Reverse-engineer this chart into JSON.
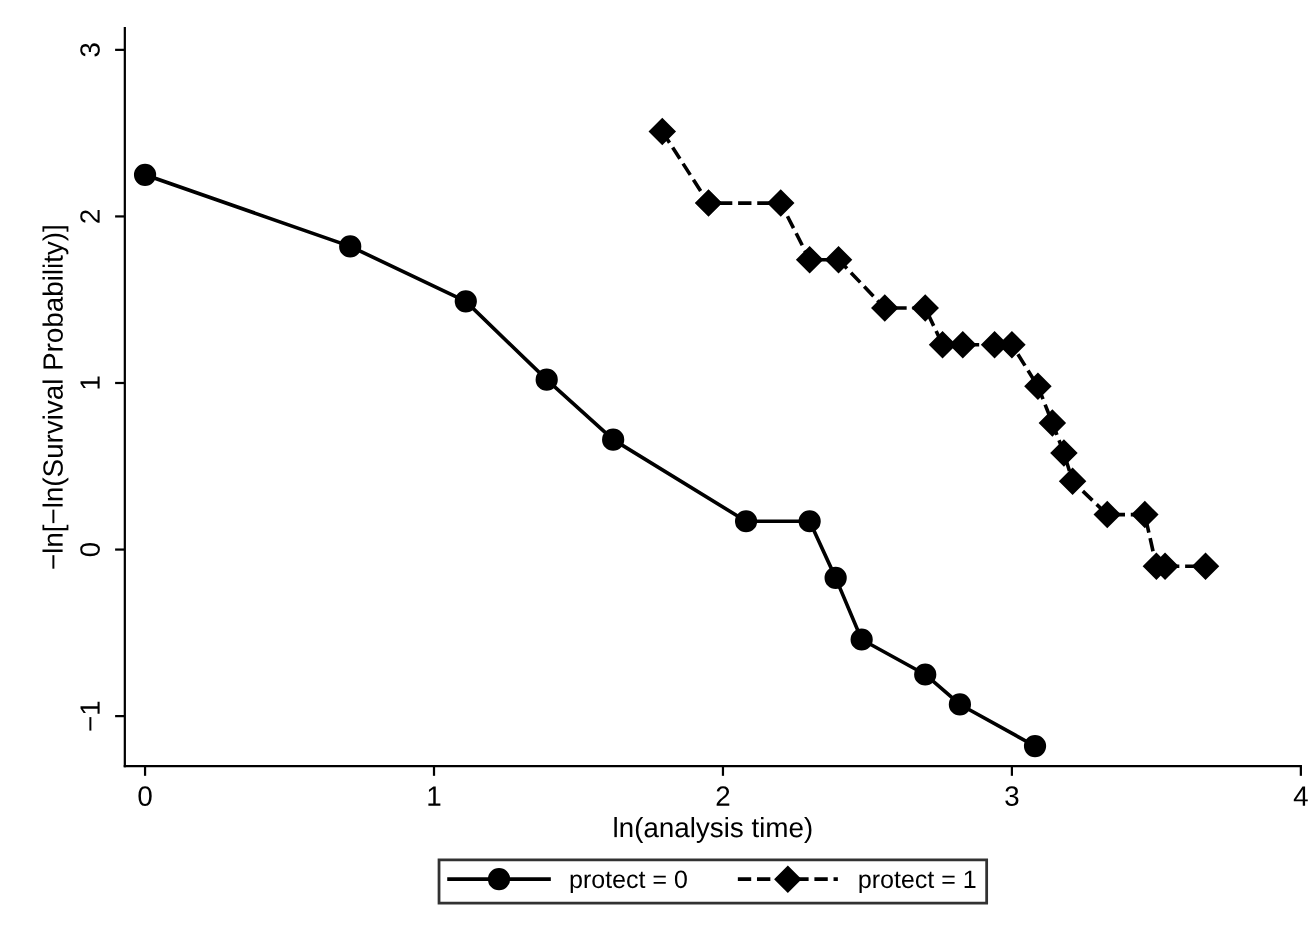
{
  "chart_data": {
    "type": "line",
    "xlabel": "ln(analysis time)",
    "ylabel": "−ln[−ln(Survival Probability)]",
    "xlim": [
      -0.07,
      4
    ],
    "ylim": [
      -1.3,
      3.13
    ],
    "xticks": [
      0,
      1,
      2,
      3,
      4
    ],
    "yticks": [
      -1,
      0,
      1,
      2,
      3
    ],
    "grid": false,
    "legend": "bottom",
    "series": [
      {
        "name": "protect = 0",
        "color": "#000000",
        "marker": "circle",
        "line_style": "solid",
        "x": [
          0,
          0.71,
          1.11,
          1.39,
          1.62,
          2.08,
          2.3,
          2.39,
          2.48,
          2.7,
          2.82,
          3.08
        ],
        "values": [
          2.25,
          1.82,
          1.49,
          1.02,
          0.66,
          0.17,
          0.17,
          -0.17,
          -0.54,
          -0.75,
          -0.93,
          -1.18
        ]
      },
      {
        "name": "protect = 1",
        "color": "#000000",
        "marker": "diamond",
        "line_style": "dashed",
        "x": [
          1.79,
          1.95,
          2.2,
          2.3,
          2.4,
          2.56,
          2.7,
          2.76,
          2.83,
          2.94,
          3.0,
          3.09,
          3.14,
          3.18,
          3.21,
          3.33,
          3.46,
          3.5,
          3.53,
          3.67
        ],
        "values": [
          2.51,
          2.08,
          2.08,
          1.74,
          1.74,
          1.45,
          1.45,
          1.23,
          1.23,
          1.23,
          1.23,
          0.98,
          0.76,
          0.58,
          0.41,
          0.21,
          0.21,
          -0.1,
          -0.1,
          -0.1
        ]
      }
    ]
  }
}
